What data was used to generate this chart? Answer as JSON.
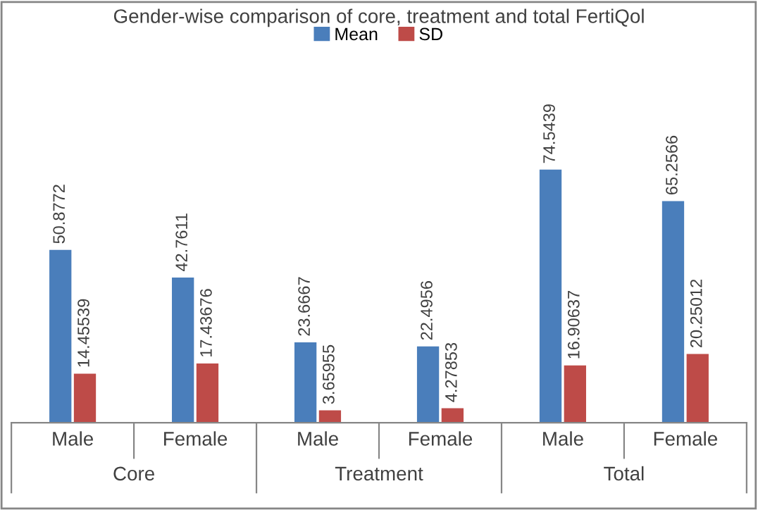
{
  "chart_data": {
    "type": "bar",
    "title": "Gender-wise comparison of core, treatment and total FertiQol",
    "categories": [
      "Male",
      "Female",
      "Male",
      "Female",
      "Male",
      "Female"
    ],
    "annotations": [
      "Core",
      "Treatment",
      "Total"
    ],
    "series": [
      {
        "name": "Mean",
        "color": "#4a7ebb",
        "values": [
          50.8772,
          42.7611,
          23.6667,
          22.4956,
          74.5439,
          65.2566
        ]
      },
      {
        "name": "SD",
        "color": "#be4b48",
        "values": [
          14.45539,
          17.43676,
          3.65955,
          4.27853,
          16.90637,
          20.25012
        ]
      }
    ],
    "data_labels": true,
    "legend": "top"
  }
}
